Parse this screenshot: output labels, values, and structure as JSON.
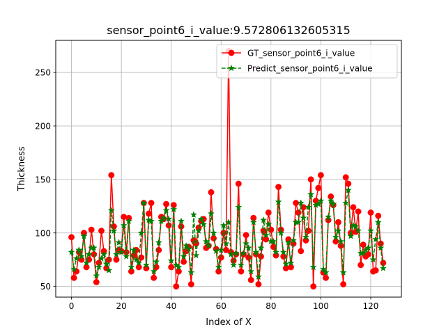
{
  "chart_data": {
    "type": "line",
    "title": "sensor_point6_i_value:9.572806132605315",
    "xlabel": "Index of X",
    "ylabel": "Thickness",
    "xlim": [
      -6.3,
      132.3
    ],
    "ylim": [
      40,
      280
    ],
    "x_ticks": [
      0,
      20,
      40,
      60,
      80,
      100,
      120
    ],
    "y_ticks": [
      50,
      100,
      150,
      200,
      250
    ],
    "grid": true,
    "legend_position": "top-right",
    "series": [
      {
        "name": "GT_sensor_point6_i_value",
        "color": "#ff0000",
        "marker": "circle",
        "line_style": "solid",
        "values": [
          96,
          58,
          64,
          82,
          75,
          100,
          68,
          75,
          103,
          80,
          54,
          72,
          102,
          83,
          67,
          75,
          154,
          106,
          75,
          84,
          83,
          115,
          82,
          114,
          64,
          79,
          84,
          68,
          77,
          128,
          67,
          118,
          128,
          58,
          68,
          84,
          115,
          113,
          127,
          107,
          68,
          126,
          50,
          64,
          106,
          73,
          83,
          87,
          52,
          93,
          90,
          105,
          111,
          113,
          86,
          88,
          138,
          95,
          85,
          64,
          77,
          100,
          84,
          270,
          82,
          74,
          80,
          146,
          64,
          80,
          98,
          77,
          56,
          114,
          80,
          52,
          78,
          102,
          94,
          119,
          103,
          87,
          79,
          143,
          103,
          78,
          67,
          94,
          68,
          90,
          128,
          119,
          83,
          124,
          93,
          102,
          150,
          50,
          130,
          142,
          154,
          63,
          58,
          112,
          134,
          126,
          92,
          110,
          88,
          52,
          152,
          146,
          100,
          124,
          101,
          120,
          70,
          89,
          78,
          80,
          119,
          64,
          65,
          116,
          90,
          72
        ],
        "x": [
          0,
          1,
          2,
          3,
          4,
          5,
          6,
          7,
          8,
          9,
          10,
          11,
          12,
          13,
          14,
          15,
          16,
          17,
          18,
          19,
          20,
          21,
          22,
          23,
          24,
          25,
          26,
          27,
          28,
          29,
          30,
          31,
          32,
          33,
          34,
          35,
          36,
          37,
          38,
          39,
          40,
          41,
          42,
          43,
          44,
          45,
          46,
          47,
          48,
          49,
          50,
          51,
          52,
          53,
          54,
          55,
          56,
          57,
          58,
          59,
          60,
          61,
          62,
          63,
          64,
          65,
          66,
          67,
          68,
          69,
          70,
          71,
          72,
          73,
          74,
          75,
          76,
          77,
          78,
          79,
          80,
          81,
          82,
          83,
          84,
          85,
          86,
          87,
          88,
          89,
          90,
          91,
          92,
          93,
          94,
          95,
          96,
          97,
          98,
          99,
          100,
          101,
          102,
          103,
          104,
          105,
          106,
          107,
          108,
          109,
          110,
          111,
          112,
          113,
          114,
          115,
          116,
          117,
          118,
          119,
          120,
          121,
          122,
          123,
          124,
          125
        ]
      },
      {
        "name": "Predict_sensor_point6_i_value",
        "color": "#008000",
        "marker": "star",
        "line_style": "dashed",
        "values": [
          82,
          66,
          76,
          84,
          78,
          97,
          72,
          80,
          86,
          86,
          60,
          68,
          76,
          80,
          71,
          65,
          121,
          102,
          80,
          91,
          82,
          107,
          78,
          111,
          68,
          84,
          75,
          72,
          100,
          128,
          70,
          112,
          111,
          64,
          73,
          91,
          111,
          114,
          121,
          113,
          74,
          122,
          70,
          68,
          111,
          78,
          88,
          85,
          63,
          117,
          79,
          102,
          113,
          108,
          92,
          88,
          118,
          100,
          83,
          68,
          84,
          107,
          90,
          110,
          80,
          70,
          81,
          124,
          70,
          81,
          90,
          86,
          64,
          110,
          82,
          59,
          86,
          112,
          98,
          108,
          92,
          92,
          82,
          129,
          100,
          82,
          71,
          91,
          72,
          93,
          110,
          110,
          128,
          114,
          96,
          124,
          136,
          68,
          126,
          127,
          130,
          66,
          63,
          115,
          130,
          127,
          96,
          102,
          92,
          63,
          128,
          140,
          97,
          107,
          106,
          102,
          81,
          81,
          84,
          86,
          102,
          75,
          94,
          110,
          86,
          67
        ],
        "x": [
          0,
          1,
          2,
          3,
          4,
          5,
          6,
          7,
          8,
          9,
          10,
          11,
          12,
          13,
          14,
          15,
          16,
          17,
          18,
          19,
          20,
          21,
          22,
          23,
          24,
          25,
          26,
          27,
          28,
          29,
          30,
          31,
          32,
          33,
          34,
          35,
          36,
          37,
          38,
          39,
          40,
          41,
          42,
          43,
          44,
          45,
          46,
          47,
          48,
          49,
          50,
          51,
          52,
          53,
          54,
          55,
          56,
          57,
          58,
          59,
          60,
          61,
          62,
          63,
          64,
          65,
          66,
          67,
          68,
          69,
          70,
          71,
          72,
          73,
          74,
          75,
          76,
          77,
          78,
          79,
          80,
          81,
          82,
          83,
          84,
          85,
          86,
          87,
          88,
          89,
          90,
          91,
          92,
          93,
          94,
          95,
          96,
          97,
          98,
          99,
          100,
          101,
          102,
          103,
          104,
          105,
          106,
          107,
          108,
          109,
          110,
          111,
          112,
          113,
          114,
          115,
          116,
          117,
          118,
          119,
          120,
          121,
          122,
          123,
          124,
          125
        ]
      }
    ]
  }
}
